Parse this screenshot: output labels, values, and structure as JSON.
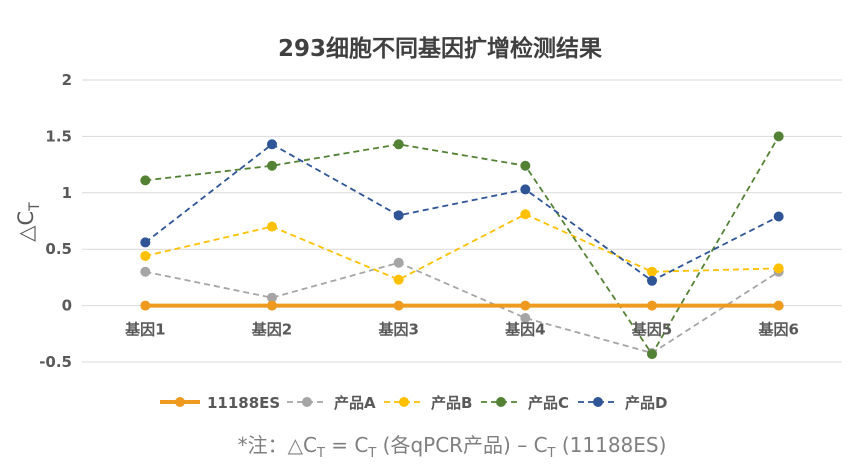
{
  "chart_data": {
    "type": "line",
    "title": "293细胞不同基因扩增检测结果",
    "ylabel": "△CT",
    "ylabel_main": "△C",
    "ylabel_sub": "T",
    "categories": [
      "基因1",
      "基因2",
      "基因3",
      "基因4",
      "基因5",
      "基因6"
    ],
    "ylim": [
      -0.5,
      2
    ],
    "yticks": [
      -0.5,
      0,
      0.5,
      1,
      1.5,
      2
    ],
    "ytick_labels": [
      "-0.5",
      "0",
      "0.5",
      "1",
      "1.5",
      "2"
    ],
    "grid": true,
    "legend_position": "bottom",
    "series": [
      {
        "name": "11188ES",
        "color": "#ED9A1E",
        "dashed": false,
        "values": [
          0,
          0,
          0,
          0,
          0,
          0
        ]
      },
      {
        "name": "产品A",
        "color": "#A5A5A5",
        "dashed": true,
        "values": [
          0.3,
          0.07,
          0.38,
          -0.11,
          -0.42,
          0.3
        ]
      },
      {
        "name": "产品B",
        "color": "#FFC000",
        "dashed": true,
        "values": [
          0.44,
          0.7,
          0.23,
          0.81,
          0.3,
          0.33
        ]
      },
      {
        "name": "产品C",
        "color": "#548235",
        "dashed": true,
        "values": [
          1.11,
          1.24,
          1.43,
          1.24,
          -0.43,
          1.5
        ]
      },
      {
        "name": "产品D",
        "color": "#2F5597",
        "dashed": true,
        "values": [
          0.56,
          1.43,
          0.8,
          1.03,
          0.22,
          0.79
        ]
      }
    ]
  },
  "note": {
    "prefix": "*注：△C",
    "sub1": "T",
    "mid1": " = C",
    "sub2": "T",
    "mid2": " (各qPCR产品) – C",
    "sub3": "T",
    "suffix": " (11188ES)"
  }
}
